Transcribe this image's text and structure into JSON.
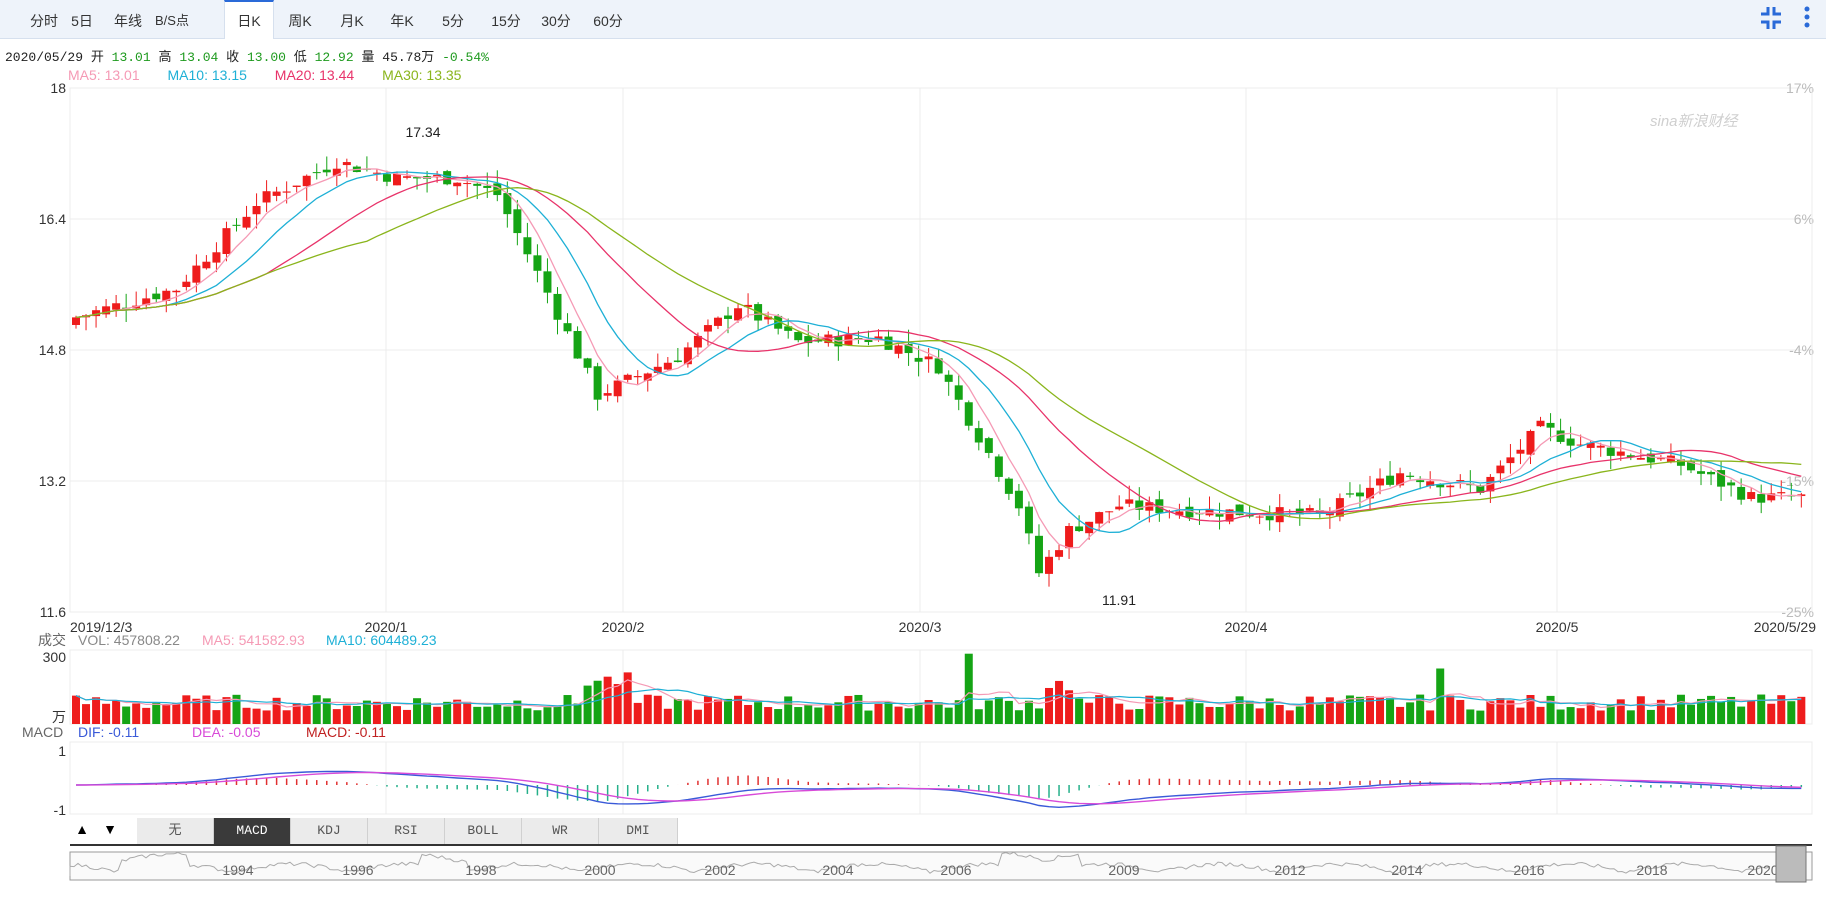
{
  "tabs": [
    {
      "label": "分时"
    },
    {
      "label": "5日"
    },
    {
      "label": "年线"
    },
    {
      "label": "B/S点"
    },
    {
      "label": "日K"
    },
    {
      "label": "周K"
    },
    {
      "label": "月K"
    },
    {
      "label": "年K"
    },
    {
      "label": "5分"
    },
    {
      "label": "15分"
    },
    {
      "label": "30分"
    },
    {
      "label": "60分"
    }
  ],
  "active_tab": "日K",
  "icons": {
    "collapse": "compress-icon",
    "more": "more-vertical-icon"
  },
  "ohlc": {
    "date": "2020/05/29",
    "open_label": "开",
    "open": "13.01",
    "high_label": "高",
    "high": "13.04",
    "close_label": "收",
    "close": "13.00",
    "low_label": "低",
    "low": "12.92",
    "vol_label": "量",
    "vol": "45.78万",
    "chg": "-0.54%"
  },
  "ma_legend": [
    {
      "text": "MA5: 13.01",
      "color": "#f59ab5"
    },
    {
      "text": "MA10: 13.15",
      "color": "#1eb0d6"
    },
    {
      "text": "MA20: 13.44",
      "color": "#e8336a"
    },
    {
      "text": "MA30: 13.35",
      "color": "#8ab51c"
    }
  ],
  "watermark": "sina新浪财经",
  "chart_data": {
    "type": "candlestick",
    "price_axis": {
      "ylim": [
        11.6,
        18
      ],
      "ticks": [
        "18",
        "16.4",
        "14.8",
        "13.2",
        "11.6"
      ]
    },
    "pct_axis": {
      "ticks": [
        "17%",
        "6%",
        "-4%",
        "-15%",
        "-25%"
      ]
    },
    "x_labels": [
      "2019/12/3",
      "2020/1",
      "2020/2",
      "2020/3",
      "2020/4",
      "2020/5",
      "2020/5/29"
    ],
    "annotations": [
      {
        "text": "17.34"
      },
      {
        "text": "11.91"
      }
    ],
    "series_colors": {
      "up": "#ee1c1c",
      "down": "#15a415",
      "ma5": "#f59ab5",
      "ma10": "#1eb0d6",
      "ma20": "#e8336a",
      "ma30": "#8ab51c"
    },
    "volume": {
      "label": "成交",
      "unit": "万",
      "ytick": "300",
      "legend": [
        {
          "text": "VOL: 457808.22",
          "color": "#888888"
        },
        {
          "text": "MA5: 541582.93",
          "color": "#f59ab5"
        },
        {
          "text": "MA10: 604489.23",
          "color": "#1eb0d6"
        }
      ]
    },
    "macd": {
      "label": "MACD",
      "yticks": [
        "1",
        "-1"
      ],
      "legend": [
        {
          "text": "DIF: -0.11",
          "color": "#3a5ad8"
        },
        {
          "text": "DEA: -0.05",
          "color": "#d84ad8"
        },
        {
          "text": "MACD: -0.11",
          "color": "#c02020"
        }
      ]
    },
    "indicator_tabs": [
      "无",
      "MACD",
      "KDJ",
      "RSI",
      "BOLL",
      "WR",
      "DMI"
    ],
    "active_indicator": "MACD",
    "navigator_years": [
      "1994",
      "1996",
      "1998",
      "2000",
      "2002",
      "2004",
      "2006",
      "2009",
      "2012",
      "2014",
      "2016",
      "2018",
      "2020"
    ]
  }
}
